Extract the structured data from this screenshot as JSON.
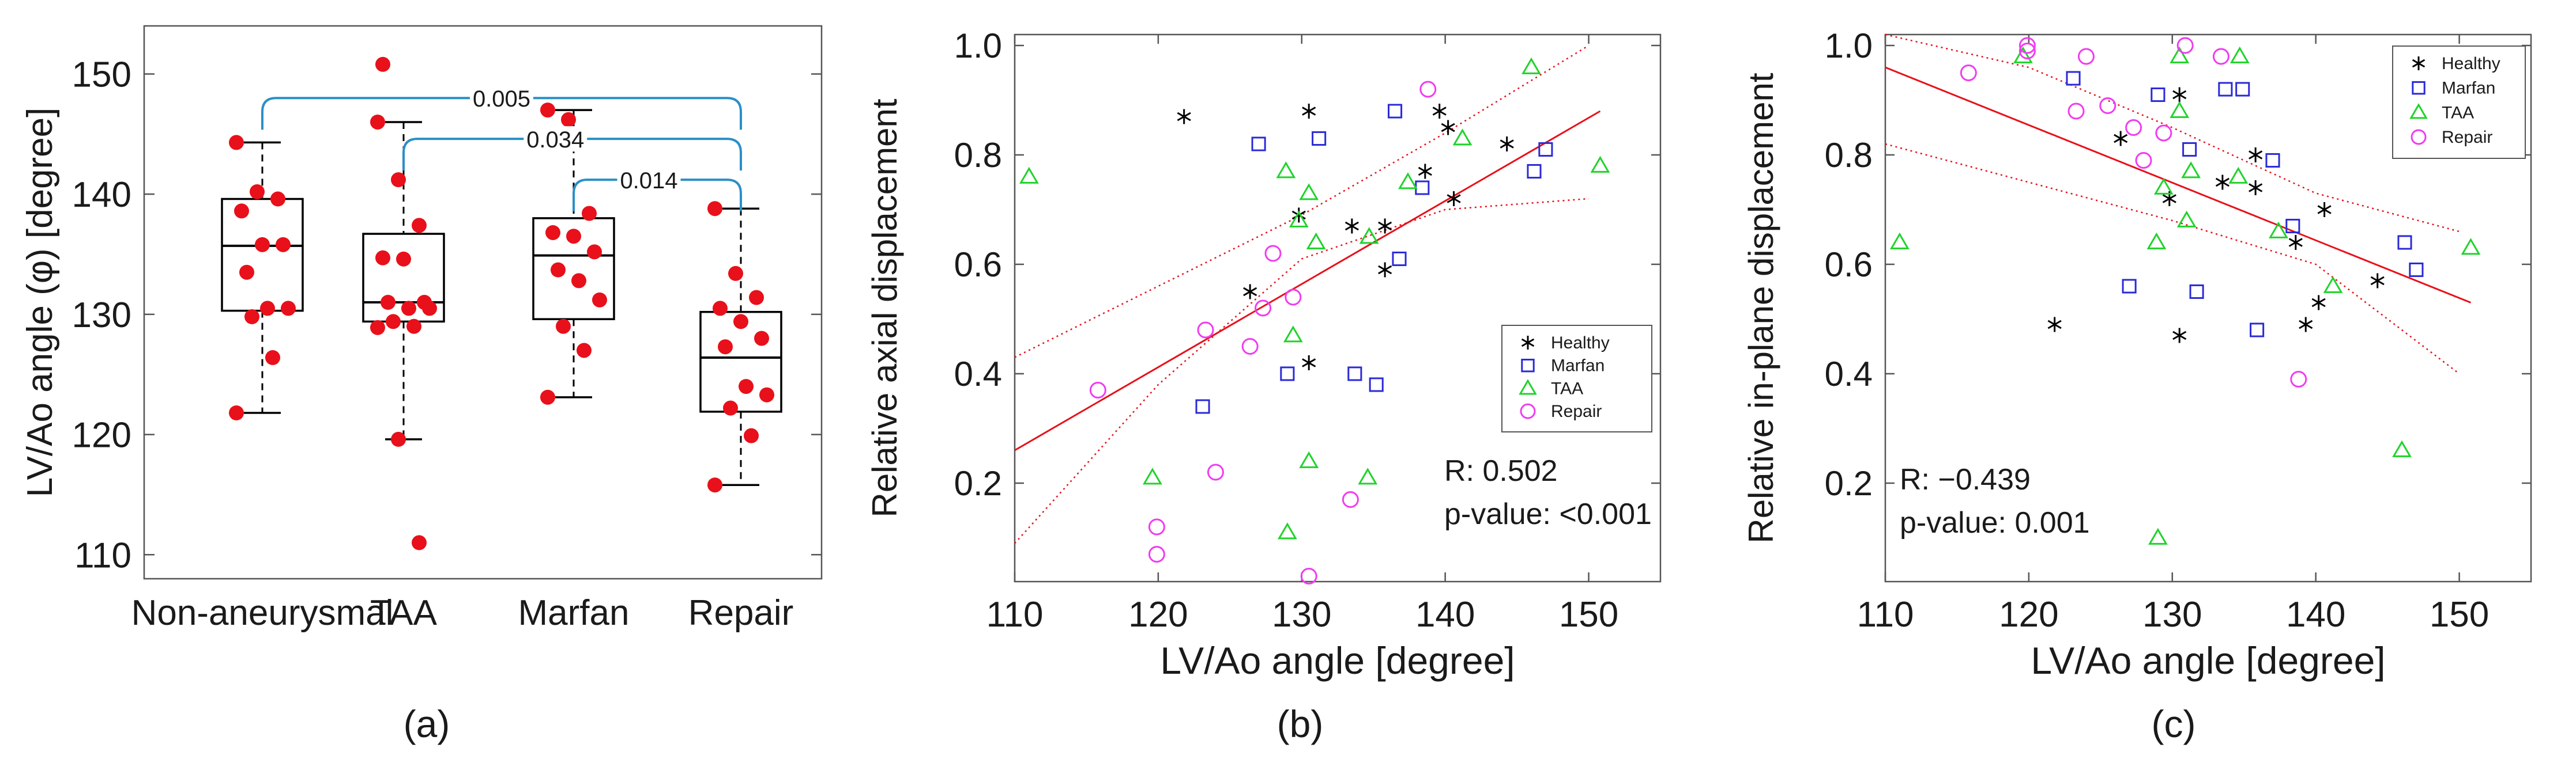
{
  "chart_data": [
    {
      "type": "box",
      "panel_label": "(a)",
      "ylabel": "LV/Ao angle (φ) [degree]",
      "ylim": [
        108,
        154
      ],
      "yticks": [
        110,
        120,
        130,
        140,
        150
      ],
      "categories": [
        "Non-aneurysmal",
        "TAA",
        "Marfan",
        "Repair"
      ],
      "boxes": [
        {
          "whisker_low": 121.8,
          "q1": 130.3,
          "median": 135.7,
          "q3": 139.6,
          "whisker_high": 144.3
        },
        {
          "whisker_low": 119.6,
          "q1": 129.4,
          "median": 131.0,
          "q3": 136.7,
          "whisker_high": 146.0
        },
        {
          "whisker_low": 123.1,
          "q1": 129.6,
          "median": 134.9,
          "q3": 138.0,
          "whisker_high": 147.0
        },
        {
          "whisker_low": 115.8,
          "q1": 121.9,
          "median": 126.4,
          "q3": 130.2,
          "whisker_high": 138.8
        }
      ],
      "points": [
        [
          144.3,
          140.2,
          139.6,
          138.6,
          135.8,
          135.8,
          133.5,
          130.5,
          130.5,
          129.8,
          126.4,
          121.8
        ],
        [
          146.0,
          141.2,
          137.4,
          134.7,
          134.6,
          131.0,
          131.0,
          130.5,
          130.5,
          129.4,
          129.0,
          128.9,
          119.6,
          111.0,
          150.8
        ],
        [
          147.0,
          146.2,
          138.4,
          136.8,
          136.5,
          135.2,
          133.7,
          132.8,
          131.2,
          129.0,
          127.0,
          123.1
        ],
        [
          138.8,
          133.4,
          131.4,
          130.5,
          129.4,
          128.0,
          127.3,
          124.0,
          123.3,
          122.2,
          119.9,
          115.8
        ]
      ],
      "brackets": [
        {
          "from": "Non-aneurysmal",
          "to": "Repair",
          "label": "0.005",
          "level": 148
        },
        {
          "from": "TAA",
          "to": "Repair",
          "label": "0.034",
          "level": 144.6
        },
        {
          "from": "Marfan",
          "to": "Repair",
          "label": "0.014",
          "level": 141.2
        }
      ],
      "colors": {
        "points": "#e8101a",
        "bracket": "#2a8fc7",
        "box": "#000000"
      }
    },
    {
      "type": "scatter",
      "panel_label": "(b)",
      "xlabel": "LV/Ao angle [degree]",
      "ylabel": "Relative axial displacement",
      "xlim": [
        110,
        155
      ],
      "ylim": [
        0.02,
        1.02
      ],
      "xticks": [
        110,
        120,
        130,
        140,
        150
      ],
      "yticks": [
        0.2,
        0.4,
        0.6,
        0.8,
        1.0
      ],
      "legend_position": "right-center",
      "series": [
        {
          "name": "Healthy",
          "marker": "asterisk",
          "color": "#000000",
          "points": [
            [
              121.8,
              0.87
            ],
            [
              126.4,
              0.55
            ],
            [
              129.8,
              0.69
            ],
            [
              130.5,
              0.88
            ],
            [
              130.5,
              0.42
            ],
            [
              133.5,
              0.67
            ],
            [
              135.8,
              0.59
            ],
            [
              135.8,
              0.67
            ],
            [
              138.6,
              0.77
            ],
            [
              139.6,
              0.88
            ],
            [
              140.2,
              0.85
            ],
            [
              140.6,
              0.72
            ],
            [
              144.3,
              0.82
            ]
          ]
        },
        {
          "name": "Marfan",
          "marker": "square",
          "color": "#2a2ad8",
          "points": [
            [
              123.1,
              0.34
            ],
            [
              127.0,
              0.82
            ],
            [
              129.0,
              0.4
            ],
            [
              131.2,
              0.83
            ],
            [
              133.7,
              0.4
            ],
            [
              135.2,
              0.38
            ],
            [
              136.5,
              0.88
            ],
            [
              136.8,
              0.61
            ],
            [
              138.4,
              0.74
            ],
            [
              146.2,
              0.77
            ],
            [
              147.0,
              0.81
            ]
          ]
        },
        {
          "name": "TAA",
          "marker": "triangle",
          "color": "#1fd32a",
          "points": [
            [
              111.0,
              0.76
            ],
            [
              119.6,
              0.21
            ],
            [
              128.9,
              0.77
            ],
            [
              129.0,
              0.11
            ],
            [
              129.4,
              0.47
            ],
            [
              130.5,
              0.24
            ],
            [
              130.5,
              0.73
            ],
            [
              131.0,
              0.64
            ],
            [
              134.6,
              0.21
            ],
            [
              134.7,
              0.65
            ],
            [
              137.4,
              0.75
            ],
            [
              141.2,
              0.83
            ],
            [
              146.0,
              0.96
            ],
            [
              150.8,
              0.78
            ],
            [
              129.8,
              0.68
            ]
          ]
        },
        {
          "name": "Repair",
          "marker": "circle",
          "color": "#f03cf0",
          "points": [
            [
              115.8,
              0.37
            ],
            [
              119.9,
              0.12
            ],
            [
              119.9,
              0.07
            ],
            [
              123.3,
              0.48
            ],
            [
              124.0,
              0.22
            ],
            [
              126.4,
              0.45
            ],
            [
              127.3,
              0.52
            ],
            [
              128.0,
              0.62
            ],
            [
              129.4,
              0.54
            ],
            [
              130.5,
              0.03
            ],
            [
              133.4,
              0.17
            ],
            [
              138.8,
              0.92
            ]
          ]
        }
      ],
      "fit_line": {
        "x": [
          110,
          150.8
        ],
        "y": [
          0.26,
          0.88
        ],
        "color": "#e8101a"
      },
      "ci_upper": {
        "x": [
          110,
          120,
          130,
          140,
          150
        ],
        "y": [
          0.43,
          0.56,
          0.69,
          0.84,
          1.0
        ]
      },
      "ci_lower": {
        "x": [
          110,
          120,
          130,
          140,
          150
        ],
        "y": [
          0.09,
          0.38,
          0.61,
          0.7,
          0.72
        ]
      },
      "annotations": [
        "R: 0.502",
        "p-value: <0.001"
      ]
    },
    {
      "type": "scatter",
      "panel_label": "(c)",
      "xlabel": "LV/Ao angle [degree]",
      "ylabel": "Relative in-plane displacement",
      "xlim": [
        110,
        155
      ],
      "ylim": [
        0.02,
        1.02
      ],
      "xticks": [
        110,
        120,
        130,
        140,
        150
      ],
      "yticks": [
        0.2,
        0.4,
        0.6,
        0.8,
        1.0
      ],
      "legend_position": "top-right",
      "series": [
        {
          "name": "Healthy",
          "marker": "asterisk",
          "color": "#000000",
          "points": [
            [
              121.8,
              0.49
            ],
            [
              126.4,
              0.83
            ],
            [
              129.8,
              0.72
            ],
            [
              130.5,
              0.91
            ],
            [
              130.5,
              0.47
            ],
            [
              133.5,
              0.75
            ],
            [
              135.8,
              0.74
            ],
            [
              135.8,
              0.8
            ],
            [
              138.6,
              0.64
            ],
            [
              139.3,
              0.49
            ],
            [
              140.2,
              0.53
            ],
            [
              140.6,
              0.7
            ],
            [
              144.3,
              0.57
            ]
          ]
        },
        {
          "name": "Marfan",
          "marker": "square",
          "color": "#2a2ad8",
          "points": [
            [
              123.1,
              0.94
            ],
            [
              127.0,
              0.56
            ],
            [
              129.0,
              0.91
            ],
            [
              131.2,
              0.81
            ],
            [
              131.7,
              0.55
            ],
            [
              133.7,
              0.92
            ],
            [
              134.9,
              0.92
            ],
            [
              135.9,
              0.48
            ],
            [
              137.0,
              0.79
            ],
            [
              138.4,
              0.67
            ],
            [
              146.2,
              0.64
            ],
            [
              147.0,
              0.59
            ]
          ]
        },
        {
          "name": "TAA",
          "marker": "triangle",
          "color": "#1fd32a",
          "points": [
            [
              111.0,
              0.64
            ],
            [
              119.6,
              0.98
            ],
            [
              128.9,
              0.64
            ],
            [
              129.0,
              0.1
            ],
            [
              129.4,
              0.74
            ],
            [
              130.5,
              0.88
            ],
            [
              130.5,
              0.98
            ],
            [
              131.0,
              0.68
            ],
            [
              131.3,
              0.77
            ],
            [
              134.6,
              0.76
            ],
            [
              134.7,
              0.98
            ],
            [
              137.4,
              0.66
            ],
            [
              141.2,
              0.56
            ],
            [
              146.0,
              0.26
            ],
            [
              150.8,
              0.63
            ]
          ]
        },
        {
          "name": "Repair",
          "marker": "circle",
          "color": "#f03cf0",
          "points": [
            [
              115.8,
              0.95
            ],
            [
              119.9,
              0.99
            ],
            [
              119.9,
              1.0
            ],
            [
              123.3,
              0.88
            ],
            [
              124.0,
              0.98
            ],
            [
              125.5,
              0.89
            ],
            [
              127.3,
              0.85
            ],
            [
              128.0,
              0.79
            ],
            [
              129.4,
              0.84
            ],
            [
              130.9,
              1.0
            ],
            [
              133.4,
              0.98
            ],
            [
              138.8,
              0.39
            ]
          ]
        }
      ],
      "fit_line": {
        "x": [
          110,
          150.8
        ],
        "y": [
          0.96,
          0.53
        ],
        "color": "#e8101a"
      },
      "ci_upper": {
        "x": [
          110,
          120,
          130,
          140,
          150
        ],
        "y": [
          1.02,
          0.96,
          0.85,
          0.73,
          0.66
        ]
      },
      "ci_lower": {
        "x": [
          110,
          120,
          130,
          140,
          150
        ],
        "y": [
          0.82,
          0.75,
          0.68,
          0.6,
          0.4
        ]
      },
      "annotations": [
        "R: −0.439",
        "p-value: 0.001"
      ]
    }
  ]
}
